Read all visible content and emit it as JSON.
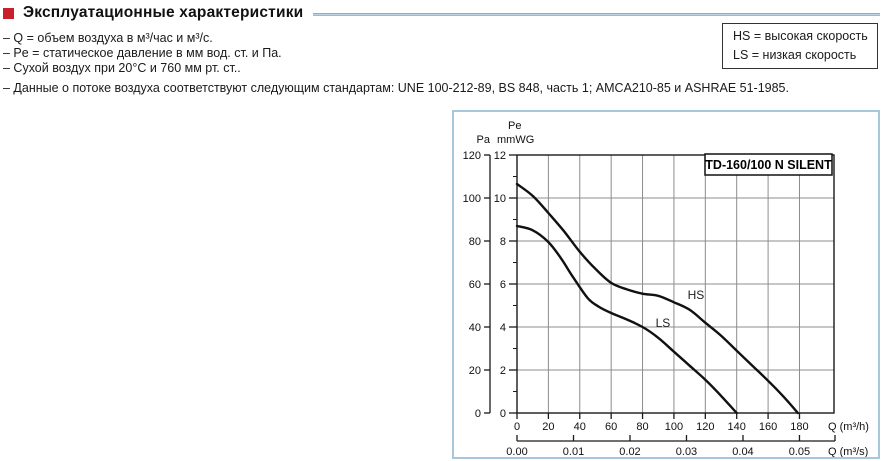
{
  "header": {
    "title": "Эксплуатационные характеристики",
    "accent_color": "#c8202a"
  },
  "specs": [
    "– Q = объем воздуха в м³/час и м³/с.",
    "– Pe = статическое давление в мм вод. ст. и Па.",
    "– Сухой воздух при 20°C и 760 мм рт. ст..",
    "– Данные о потоке воздуха соответствуют следующим стандартам: UNE 100-212-89, BS 848, часть 1; AMCA210-85 и ASHRAE 51-1985."
  ],
  "legend": {
    "hs": "HS = высокая скорость",
    "ls": "LS = низкая скорость"
  },
  "chart_data": {
    "type": "line",
    "title": "TD-160/100 N SILENT",
    "x_axis": {
      "label": "Q (m³/h)",
      "ticks": [
        0,
        20,
        40,
        60,
        80,
        100,
        120,
        140,
        160,
        180
      ],
      "range": [
        0,
        202
      ]
    },
    "x_axis_secondary": {
      "label": "Q (m³/s)",
      "tick_labels": [
        "0.00",
        "0.01",
        "0.02",
        "0.03",
        "0.04",
        "0.05"
      ],
      "tick_step_m3h": 36
    },
    "y_axis_inner": {
      "header": "Pe",
      "unit": "mmWG",
      "ticks": [
        0,
        2,
        4,
        6,
        8,
        10,
        12
      ],
      "range": [
        0,
        12
      ]
    },
    "y_axis_outer": {
      "unit": "Pa",
      "ticks": [
        0,
        20,
        40,
        60,
        80,
        100,
        120
      ],
      "range": [
        0,
        120
      ]
    },
    "grid": true,
    "grid_color": "#8c8c8c",
    "curve_color": "#111111",
    "series": [
      {
        "name": "HS",
        "label_pos": [
          114,
          5.3
        ],
        "points": [
          [
            0,
            10.65
          ],
          [
            10,
            10.1
          ],
          [
            20,
            9.3
          ],
          [
            30,
            8.45
          ],
          [
            40,
            7.5
          ],
          [
            50,
            6.7
          ],
          [
            60,
            6.05
          ],
          [
            70,
            5.75
          ],
          [
            80,
            5.55
          ],
          [
            90,
            5.45
          ],
          [
            100,
            5.15
          ],
          [
            110,
            4.8
          ],
          [
            120,
            4.2
          ],
          [
            130,
            3.6
          ],
          [
            140,
            2.9
          ],
          [
            150,
            2.2
          ],
          [
            160,
            1.5
          ],
          [
            170,
            0.75
          ],
          [
            179,
            0
          ]
        ]
      },
      {
        "name": "LS",
        "label_pos": [
          93,
          4.0
        ],
        "points": [
          [
            0,
            8.7
          ],
          [
            10,
            8.5
          ],
          [
            20,
            7.95
          ],
          [
            28,
            7.2
          ],
          [
            35,
            6.4
          ],
          [
            45,
            5.35
          ],
          [
            52,
            4.95
          ],
          [
            60,
            4.65
          ],
          [
            70,
            4.35
          ],
          [
            80,
            4.0
          ],
          [
            90,
            3.5
          ],
          [
            100,
            2.85
          ],
          [
            110,
            2.2
          ],
          [
            120,
            1.55
          ],
          [
            130,
            0.8
          ],
          [
            140,
            0
          ]
        ]
      }
    ]
  }
}
